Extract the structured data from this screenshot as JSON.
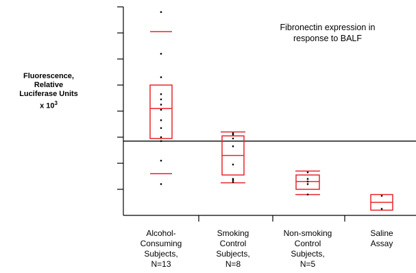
{
  "chart_data": {
    "type": "box",
    "title": "",
    "annotation": [
      "Fibronectin expression in",
      "response to BALF"
    ],
    "ylabel": [
      "Fluorescence,",
      "Relative",
      "Luciferase Units",
      "x 10"
    ],
    "ylabel_superscript": "3",
    "ylim": [
      0,
      8
    ],
    "y_ticks": [
      1,
      2,
      3,
      4,
      5,
      6,
      7,
      8
    ],
    "y_tick_labels_shown": false,
    "reference_line_y": 2.85,
    "categories": [
      [
        "Alcohol-",
        "Consuming",
        "Subjects,",
        "N=13"
      ],
      [
        "Smoking",
        "Control",
        "Subjects,",
        "N=8"
      ],
      [
        "Non-smoking",
        "Control",
        "Subjects,",
        "N=5"
      ],
      [
        "Saline",
        "Assay"
      ]
    ],
    "groups": [
      {
        "q1": 2.95,
        "median": 4.1,
        "q3": 5.0,
        "whisker_low": 1.6,
        "whisker_high": 7.05,
        "points": [
          7.8,
          6.2,
          5.3,
          4.65,
          4.45,
          4.25,
          4.05,
          3.65,
          3.35,
          3.0,
          2.85,
          2.1,
          1.2
        ]
      },
      {
        "q1": 1.55,
        "median": 2.3,
        "q3": 3.05,
        "whisker_low": 1.25,
        "whisker_high": 3.2,
        "points": [
          3.1,
          2.65,
          1.95,
          1.35,
          1.4,
          2.95,
          3.15,
          1.28
        ]
      },
      {
        "q1": 1.0,
        "median": 1.3,
        "q3": 1.55,
        "whisker_low": 0.8,
        "whisker_high": 1.7,
        "points": [
          1.65,
          1.4,
          1.2,
          0.8,
          1.3
        ]
      },
      {
        "q1": 0.2,
        "median": 0.5,
        "q3": 0.8,
        "whisker_low": null,
        "whisker_high": null,
        "points": [
          0.75,
          0.25
        ]
      }
    ],
    "grid": false,
    "legend": "none"
  },
  "colors": {
    "box": "#e8232a",
    "axis": "#000000",
    "point": "#000000"
  }
}
